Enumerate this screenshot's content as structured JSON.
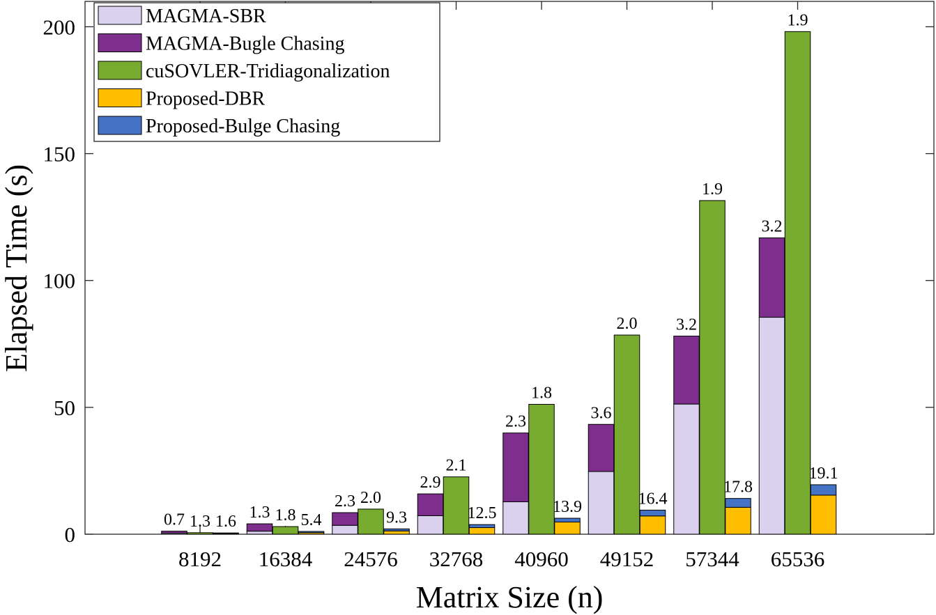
{
  "chart_data": {
    "type": "bar",
    "subtype": "grouped-stacked",
    "title": "",
    "xlabel": "Matrix Size (n)",
    "ylabel": "Elapsed Time (s)",
    "ylim": [
      0,
      210
    ],
    "yticks": [
      0,
      50,
      100,
      150,
      200
    ],
    "categories": [
      "8192",
      "16384",
      "24576",
      "32768",
      "40960",
      "49152",
      "57344",
      "65536"
    ],
    "legend_position": "top-left",
    "groups": [
      {
        "name": "MAGMA",
        "series": [
          {
            "name": "MAGMA-SBR",
            "color": "#d9d1ee",
            "values": [
              0.4,
              1.2,
              3.5,
              7.3,
              12.8,
              24.7,
              51.3,
              85.5
            ]
          },
          {
            "name": "MAGMA-Bugle Chasing",
            "color": "#7e2f8e",
            "values": [
              0.8,
              2.9,
              5.0,
              8.6,
              27.1,
              18.6,
              26.8,
              31.3
            ]
          }
        ],
        "labels": [
          "0.7",
          "1.3",
          "2.3",
          "2.9",
          "2.3",
          "3.6",
          "3.2",
          "3.2"
        ]
      },
      {
        "name": "cuSOLVER",
        "series": [
          {
            "name": "cuSOVLER-Tridiagonalization",
            "color": "#77ac30",
            "values": [
              0.6,
              3.0,
              9.9,
              22.6,
              51.2,
              78.5,
              131.5,
              198.1
            ]
          }
        ],
        "labels": [
          "1.3",
          "1.8",
          "2.0",
          "2.1",
          "1.8",
          "2.0",
          "1.9",
          "1.9"
        ]
      },
      {
        "name": "Proposed",
        "series": [
          {
            "name": "Proposed-DBR",
            "color": "#ffbf00",
            "values": [
              0.3,
              0.6,
              1.3,
              2.6,
              4.8,
              7.2,
              10.6,
              15.4
            ]
          },
          {
            "name": "Proposed-Bulge Chasing",
            "color": "#4472c4",
            "values": [
              0.2,
              0.5,
              0.8,
              1.2,
              1.5,
              2.3,
              3.5,
              4.1
            ]
          }
        ],
        "labels": [
          "1.6",
          "5.4",
          "9.3",
          "12.5",
          "13.9",
          "16.4",
          "17.8",
          "19.1"
        ]
      }
    ]
  }
}
